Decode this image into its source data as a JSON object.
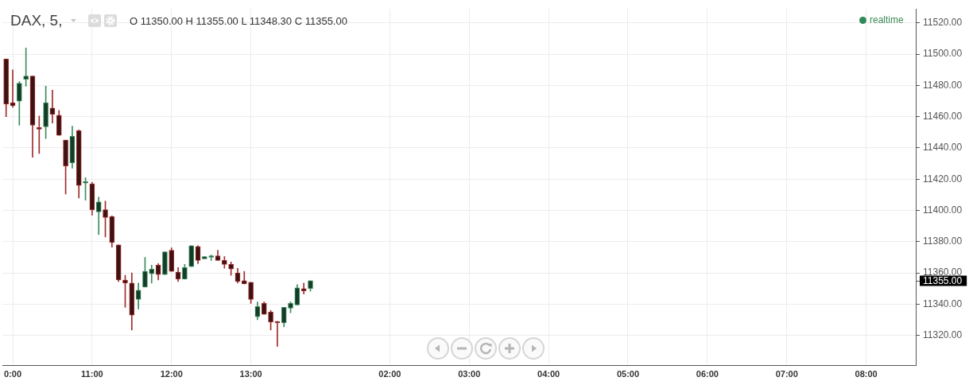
{
  "chart_data": {
    "type": "candlestick",
    "title": "DAX, 5,",
    "subtitle": "O 11350.00 H 11355.00 L 11348.30 C 11355.00",
    "annotations": [
      "realtime",
      "11355.00"
    ],
    "categories": [
      null,
      "0:00",
      null,
      null,
      null,
      null,
      null,
      null,
      null,
      null,
      null,
      null,
      null,
      "11:00",
      null,
      null,
      null,
      null,
      null,
      null,
      null,
      null,
      null,
      null,
      null,
      "12:00",
      null,
      null,
      null,
      null,
      null,
      null,
      null,
      null,
      null,
      null,
      null,
      "13:00",
      null,
      null,
      null,
      null,
      null,
      null,
      null,
      null,
      null,
      null,
      null,
      null,
      null,
      null,
      null,
      null,
      null,
      null,
      null,
      null,
      "02:00",
      null,
      null,
      null,
      null,
      null,
      null,
      null,
      null,
      null,
      null,
      null,
      "03:00",
      null,
      null,
      null,
      null,
      null,
      null,
      null,
      null,
      null,
      null,
      null,
      "04:00",
      null,
      null,
      null,
      null,
      null,
      null,
      null,
      null,
      null,
      null,
      null,
      "05:00",
      null,
      null,
      null,
      null,
      null,
      null,
      null,
      null,
      null,
      null,
      null,
      "06:00",
      null,
      null,
      null,
      null,
      null,
      null,
      null,
      null,
      null,
      null,
      null,
      "07:00",
      null,
      null,
      null,
      null,
      null,
      null,
      null,
      null,
      null,
      null,
      null,
      "08:00",
      null,
      null,
      null,
      null,
      null,
      null,
      null
    ],
    "ohlc": [
      [
        11497,
        11497,
        11460,
        11468
      ],
      [
        11469,
        11490,
        11466,
        11467
      ],
      [
        11470,
        11482.5,
        11454.5,
        11481.5
      ],
      [
        11484,
        11504,
        11479.5,
        11486
      ],
      [
        11486,
        11486,
        11434,
        11454.5
      ],
      [
        11453,
        11460.5,
        11436.5,
        11452
      ],
      [
        11453.5,
        11479.5,
        11446,
        11469
      ],
      [
        11465.5,
        11477,
        11456,
        11461.5
      ],
      [
        11461,
        11464,
        11448,
        11448
      ],
      [
        11445,
        11445,
        11410.5,
        11428.5
      ],
      [
        11430.5,
        11454,
        11427,
        11447.5
      ],
      [
        11451,
        11451.5,
        11408,
        11416
      ],
      [
        11417.5,
        11421,
        11406.5,
        11418.5
      ],
      [
        11417,
        11418,
        11397,
        11400.5
      ],
      [
        11399,
        11408.5,
        11384.5,
        11405.5
      ],
      [
        11400.5,
        11406,
        11383,
        11395.5
      ],
      [
        11396,
        11396.5,
        11376.5,
        11379.5
      ],
      [
        11378,
        11378,
        11354.5,
        11355.5
      ],
      [
        11355.5,
        11358.5,
        11338,
        11353.5
      ],
      [
        11353.5,
        11360,
        11323.5,
        11333
      ],
      [
        11343,
        11353.5,
        11337,
        11349
      ],
      [
        11351,
        11370,
        11351,
        11361
      ],
      [
        11359.5,
        11365,
        11353.5,
        11362.5
      ],
      [
        11365,
        11366,
        11355.5,
        11359
      ],
      [
        11359,
        11373.5,
        11359,
        11373.5
      ],
      [
        11374.5,
        11376,
        11361,
        11361
      ],
      [
        11360.5,
        11363.5,
        11354.5,
        11356
      ],
      [
        11356,
        11365.5,
        11356,
        11363.5
      ],
      [
        11364,
        11377.5,
        11364,
        11377.5
      ],
      [
        11377,
        11377.5,
        11366,
        11368
      ],
      [
        11369,
        11370.5,
        11369,
        11370.5
      ],
      [
        11370,
        11371.5,
        11368,
        11371
      ],
      [
        11371,
        11374.5,
        11368,
        11368
      ],
      [
        11368,
        11370.5,
        11363,
        11365.5
      ],
      [
        11365.5,
        11367,
        11358.5,
        11362.5
      ],
      [
        11360,
        11363,
        11353.5,
        11354.5
      ],
      [
        11355,
        11361,
        11353,
        11353
      ],
      [
        11354,
        11354,
        11340.5,
        11343
      ],
      [
        11332,
        11341.5,
        11330,
        11338.5
      ],
      [
        11340.5,
        11341.5,
        11333.5,
        11333.5
      ],
      [
        11335,
        11336,
        11323.5,
        11328.5
      ],
      [
        11329,
        11329,
        11313,
        11328
      ],
      [
        11328,
        11338,
        11325.5,
        11338
      ],
      [
        11337.5,
        11341.5,
        11334.5,
        11340.5
      ],
      [
        11339.5,
        11352.5,
        11339.5,
        11350.5
      ],
      [
        11350,
        11353.5,
        11346.5,
        11348.5
      ],
      [
        11350,
        11355,
        11348.3,
        11355
      ],
      null,
      null,
      null,
      null,
      null,
      null,
      null,
      null,
      null,
      null,
      null,
      null,
      null,
      null,
      null,
      null,
      null,
      null,
      null,
      null,
      null,
      null,
      null,
      null,
      null,
      null,
      null,
      null,
      null,
      null,
      null,
      null,
      null,
      null,
      null,
      null,
      null,
      null,
      null,
      null,
      null,
      null,
      null,
      null,
      null,
      null,
      null,
      null,
      null,
      null,
      null,
      null,
      null,
      null,
      null,
      null,
      null,
      null,
      null,
      null,
      null,
      null,
      null,
      null,
      null,
      null,
      null,
      null,
      null,
      null,
      null,
      null,
      null,
      null,
      null,
      null,
      null,
      null,
      null,
      null,
      null,
      null,
      null,
      null,
      null,
      null,
      null,
      null,
      null,
      null,
      null
    ],
    "ylim": [
      11301,
      11529
    ],
    "yticks": [
      {
        "value": 11320,
        "label": "11320.00"
      },
      {
        "value": 11340,
        "label": "11340.00"
      },
      {
        "value": 11360,
        "label": "11360.00"
      },
      {
        "value": 11380,
        "label": "11380.00"
      },
      {
        "value": 11400,
        "label": "11400.00"
      },
      {
        "value": 11420,
        "label": "11420.00"
      },
      {
        "value": 11440,
        "label": "11440.00"
      },
      {
        "value": 11460,
        "label": "11460.00"
      },
      {
        "value": 11480,
        "label": "11480.00"
      },
      {
        "value": 11500,
        "label": "11500.00"
      },
      {
        "value": 11520,
        "label": "11520.00"
      }
    ],
    "grid": true
  }
}
